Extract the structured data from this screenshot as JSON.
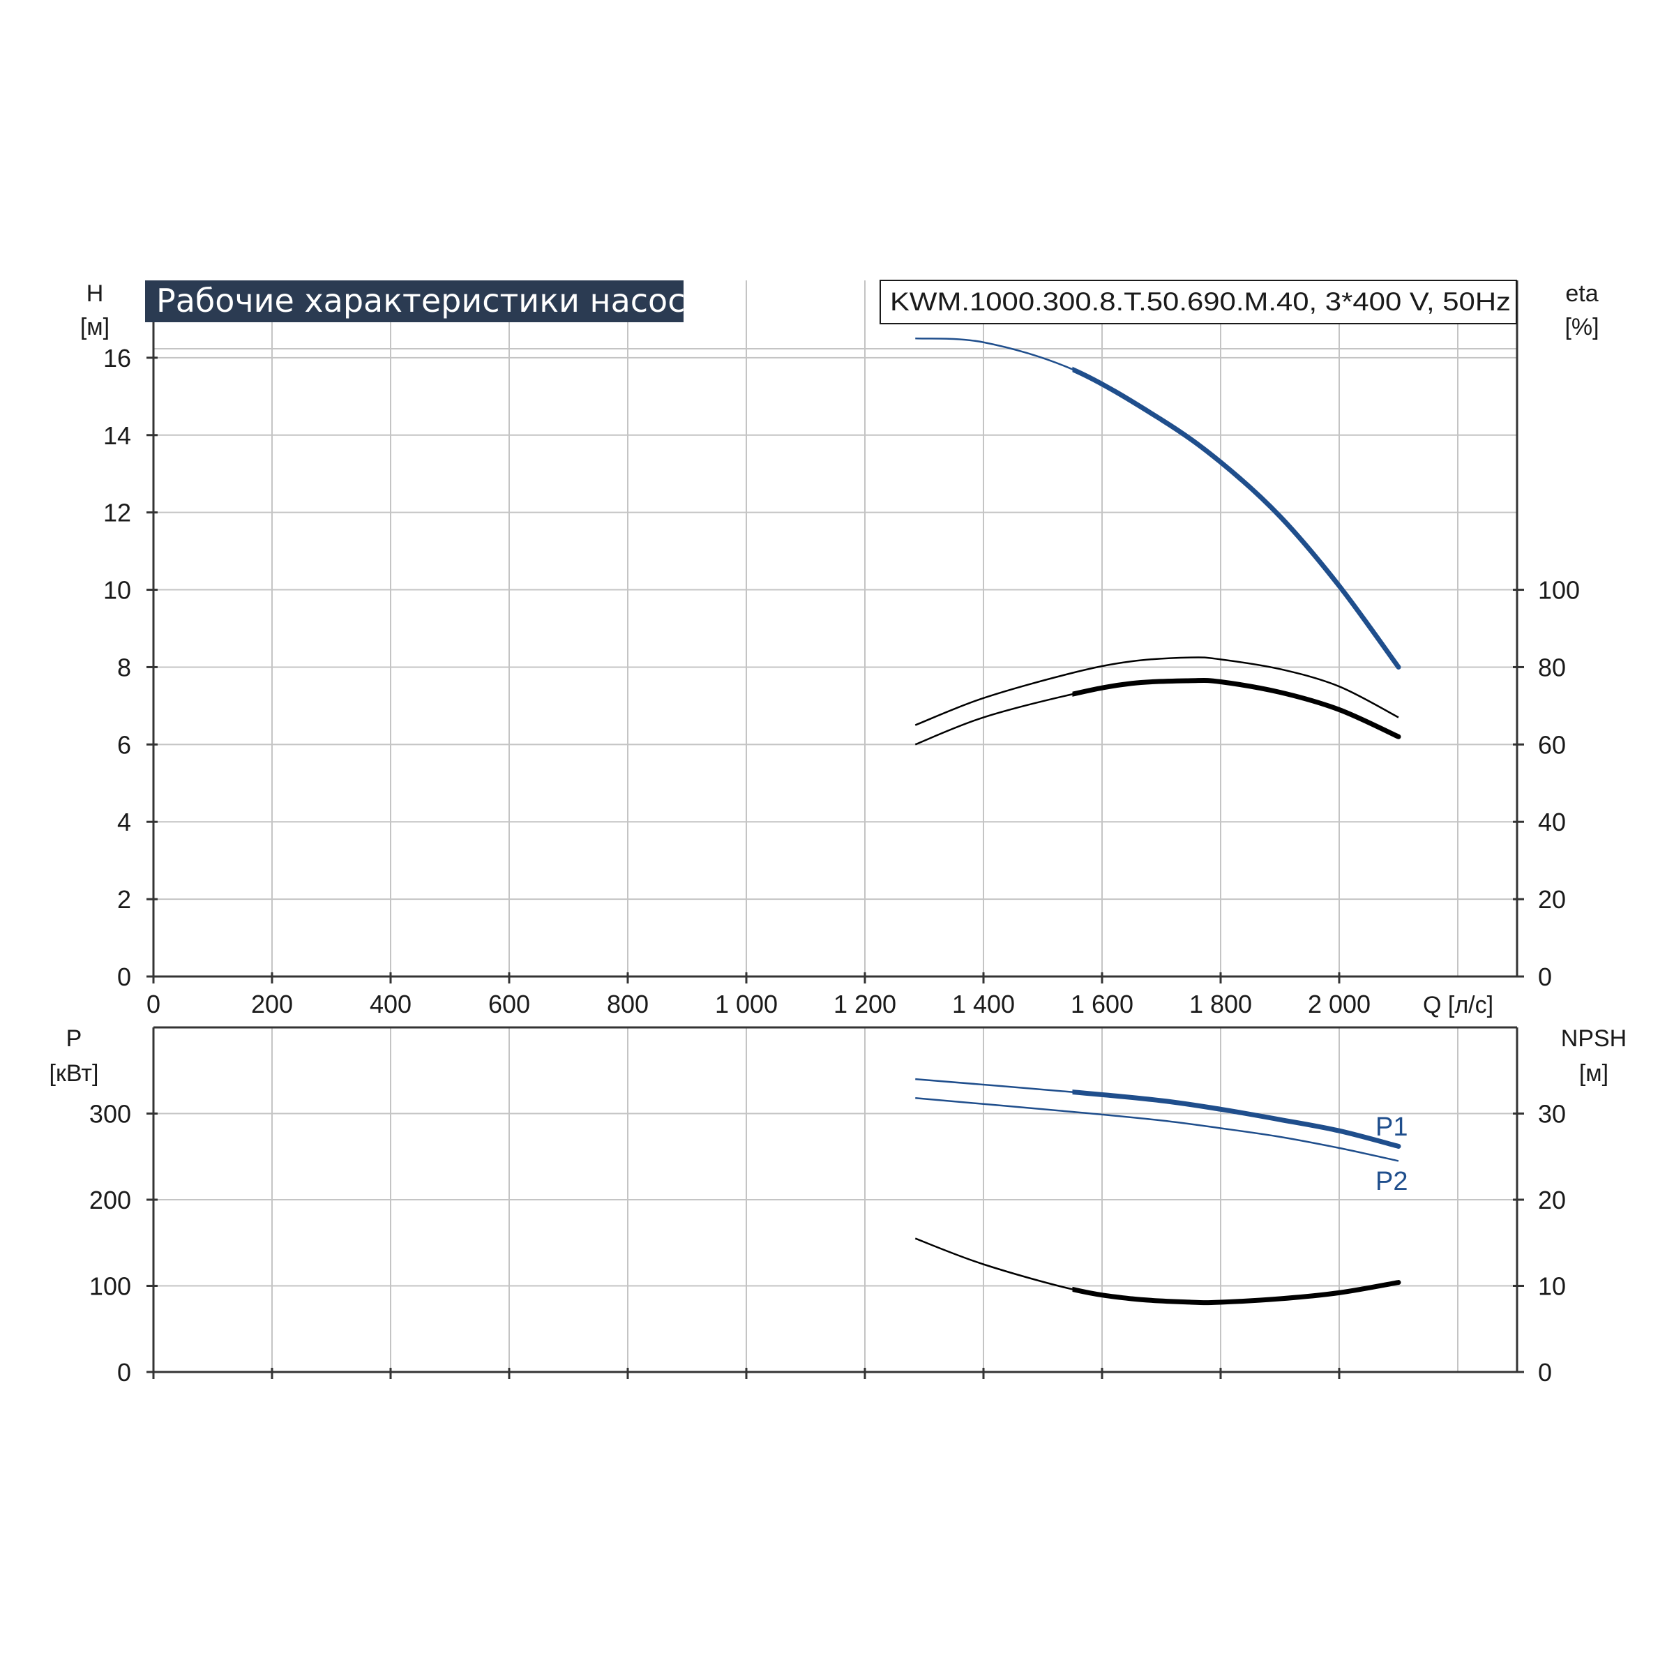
{
  "chart_title": "Рабочие характеристики насоса",
  "model_label": "KWM.1000.300.8.T.50.690.M.40, 3*400 V, 50Hz",
  "colors": {
    "blue": "#1f4e8c",
    "black": "#000000",
    "title_bg": "#2b3b52",
    "grid": "#c4c4c4"
  },
  "chart_data": [
    {
      "type": "line",
      "name": "upper",
      "x": {
        "label": "Q [л/с]",
        "range": [
          0,
          2300
        ],
        "ticks": [
          0,
          200,
          400,
          600,
          800,
          1000,
          1200,
          1400,
          1600,
          1800,
          2000
        ],
        "tick_labels": [
          "0",
          "200",
          "400",
          "600",
          "800",
          "1 000",
          "1 200",
          "1 400",
          "1 600",
          "1 800",
          "2 000"
        ]
      },
      "y_left": {
        "label_line1": "H",
        "label_line2": "[м]",
        "range": [
          0,
          18
        ],
        "ticks": [
          0,
          2,
          4,
          6,
          8,
          10,
          12,
          14,
          16
        ]
      },
      "y_right": {
        "label_line1": "eta",
        "label_line2": "[%]",
        "range": [
          0,
          180
        ],
        "ticks": [
          0,
          20,
          40,
          60,
          80,
          100
        ]
      },
      "grid": true,
      "series": [
        {
          "axis": "left",
          "color": "blue",
          "x": [
            1285,
            1400,
            1550,
            1700,
            1800,
            1900,
            2000,
            2100
          ],
          "y": [
            16.5,
            16.4,
            15.7,
            14.4,
            13.3,
            11.9,
            10.1,
            8.0
          ],
          "bold_from": 1550
        },
        {
          "axis": "right",
          "color": "black",
          "x": [
            1285,
            1400,
            1550,
            1650,
            1750,
            1800,
            1900,
            2000,
            2100
          ],
          "y": [
            65,
            72,
            78.5,
            81.5,
            82.5,
            82,
            79.5,
            75,
            67
          ],
          "bold_from": null
        },
        {
          "axis": "right",
          "color": "black",
          "x": [
            1285,
            1400,
            1550,
            1650,
            1750,
            1800,
            1900,
            2000,
            2100
          ],
          "y": [
            60,
            67,
            73,
            75.8,
            76.5,
            76.2,
            73.5,
            69,
            62
          ],
          "bold_from": 1550
        }
      ]
    },
    {
      "type": "line",
      "name": "lower",
      "x": {
        "range": [
          0,
          2300
        ],
        "ticks": [
          0,
          200,
          400,
          600,
          800,
          1000,
          1200,
          1400,
          1600,
          1800,
          2000
        ]
      },
      "y_left": {
        "label_line1": "P",
        "label_line2": "[кВт]",
        "range": [
          0,
          400
        ],
        "ticks": [
          0,
          100,
          200,
          300
        ]
      },
      "y_right": {
        "label_line1": "NPSH",
        "label_line2": "[м]",
        "range": [
          0,
          40
        ],
        "ticks": [
          0,
          10,
          20,
          30
        ]
      },
      "grid": true,
      "series": [
        {
          "name": "P1",
          "axis": "left",
          "color": "blue",
          "x": [
            1285,
            1550,
            1700,
            1800,
            1900,
            2000,
            2100
          ],
          "y": [
            340,
            325,
            315,
            305,
            293,
            280,
            262
          ],
          "bold_from": 1550
        },
        {
          "name": "P2",
          "axis": "left",
          "color": "blue",
          "x": [
            1285,
            1550,
            1700,
            1800,
            1900,
            2000,
            2100
          ],
          "y": [
            318,
            302,
            292,
            283,
            273,
            260,
            245
          ],
          "bold_from": null
        },
        {
          "axis": "right",
          "color": "black",
          "x": [
            1285,
            1400,
            1550,
            1650,
            1750,
            1800,
            1900,
            2000,
            2100
          ],
          "y": [
            15.5,
            12.5,
            9.6,
            8.5,
            8.1,
            8.1,
            8.5,
            9.2,
            10.4
          ],
          "bold_from": 1550
        }
      ]
    }
  ]
}
